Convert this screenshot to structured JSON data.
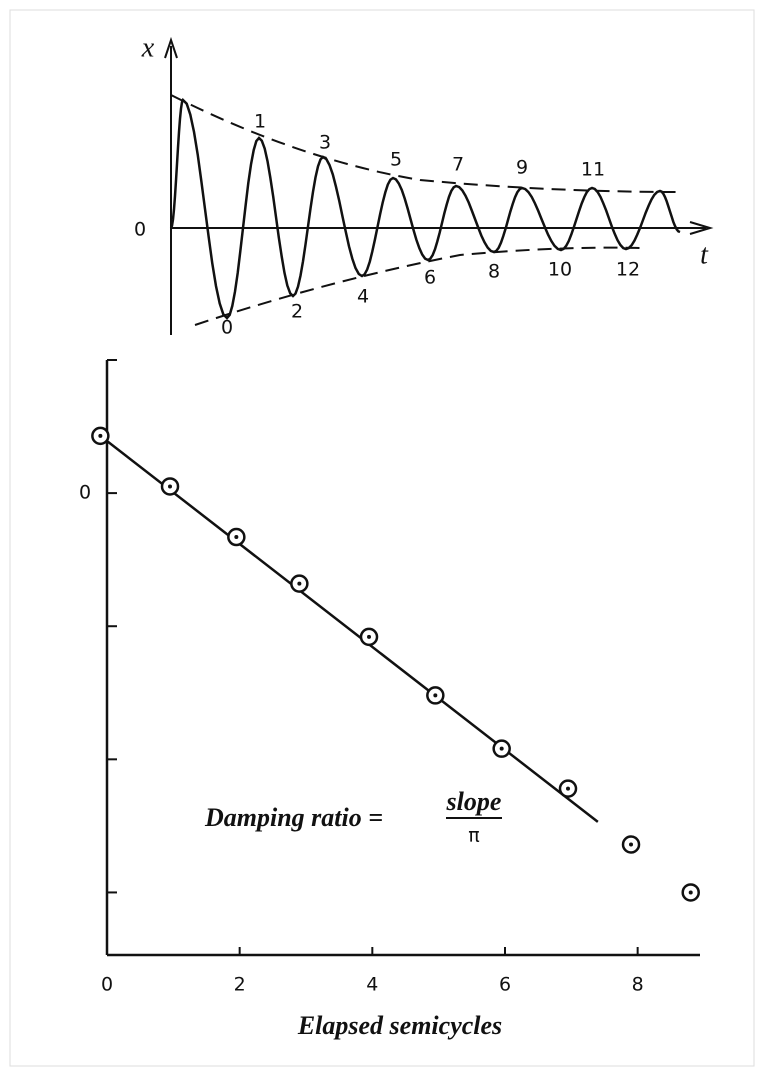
{
  "diagram": {
    "axis_labels": {
      "x": "x",
      "origin": "0",
      "t": "t"
    },
    "extremum_labels": [
      "0",
      "1",
      "2",
      "3",
      "4",
      "5",
      "6",
      "7",
      "8",
      "9",
      "10",
      "11",
      "12"
    ]
  },
  "chart_data": {
    "type": "scatter",
    "x": [
      -0.1,
      0.95,
      1.95,
      2.9,
      3.95,
      4.95,
      5.95,
      6.95,
      7.9,
      8.8
    ],
    "values": [
      0.43,
      0.05,
      -0.33,
      -0.68,
      -1.08,
      -1.52,
      -1.92,
      -2.22,
      -2.64,
      -3.0
    ],
    "fit_line": {
      "x": [
        -0.1,
        7.4
      ],
      "y": [
        0.43,
        -2.47
      ]
    },
    "xlim": [
      0,
      8.94
    ],
    "ylim": [
      -3.47,
      1
    ],
    "xticks": [
      0,
      2,
      4,
      6,
      8
    ],
    "yticks": [
      0
    ],
    "minor_yticks": [
      -3,
      -2,
      -1,
      1
    ],
    "annotation": {
      "text": "Damping ratio =",
      "numerator": "slope",
      "denominator": "π"
    },
    "xlabel": "Elapsed semicycles",
    "color": "#111111"
  }
}
